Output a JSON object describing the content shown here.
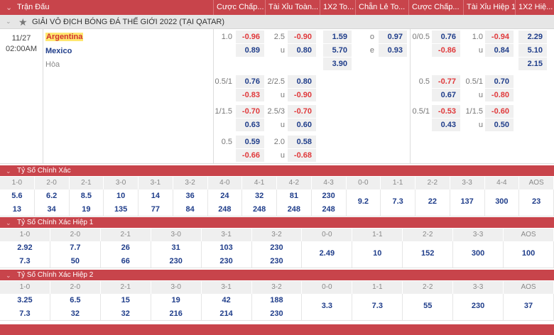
{
  "header": {
    "columns": [
      "Trận Đấu",
      "Cược Chấp...",
      "Tài Xỉu Toàn...",
      "1X2 To...",
      "Chẵn Lẻ To...",
      "Cược Chấp...",
      "Tài Xỉu Hiệp 1",
      "1X2 Hiệ..."
    ]
  },
  "league": {
    "name": "GIẢI VÔ ĐỊCH BÓNG ĐÁ THẾ GIỚI 2022 (TẠI QATAR)",
    "icon": "star-icon"
  },
  "match": {
    "date": "11/27",
    "time": "02:00AM",
    "home": "Argentina",
    "away": "Mexico",
    "draw": "Hòa",
    "x12": [
      "1.59",
      "5.70",
      "3.90"
    ],
    "oddeven": [
      {
        "label": "o",
        "value": "0.97"
      },
      {
        "label": "e",
        "value": "0.93"
      }
    ],
    "h1_x12": [
      "2.29",
      "5.10",
      "2.15"
    ],
    "groups": [
      {
        "hdp": {
          "line": "1.0",
          "a": "-0.96",
          "b": "0.89"
        },
        "ou": {
          "line": "2.5",
          "u": "u",
          "a": "-0.90",
          "b": "0.80"
        },
        "h1_hdp": {
          "line": "0/0.5",
          "a": "0.76",
          "b": "-0.86"
        },
        "h1_ou": {
          "line": "1.0",
          "u": "u",
          "a": "-0.94",
          "b": "0.84"
        }
      },
      {
        "hdp": {
          "line": "0.5/1",
          "a": "0.76",
          "b": "-0.83"
        },
        "ou": {
          "line": "2/2.5",
          "u": "u",
          "a": "0.80",
          "b": "-0.90"
        },
        "h1_hdp": {
          "line": "0.5",
          "a": "-0.77",
          "b": "0.67"
        },
        "h1_ou": {
          "line": "0.5/1",
          "u": "u",
          "a": "0.70",
          "b": "-0.80"
        }
      },
      {
        "hdp": {
          "line": "1/1.5",
          "a": "-0.70",
          "b": "0.63"
        },
        "ou": {
          "line": "2.5/3",
          "u": "u",
          "a": "-0.70",
          "b": "0.60"
        },
        "h1_hdp": {
          "line": "0.5/1",
          "a": "-0.53",
          "b": "0.43"
        },
        "h1_ou": {
          "line": "1/1.5",
          "u": "u",
          "a": "-0.60",
          "b": "0.50"
        }
      },
      {
        "hdp": {
          "line": "0.5",
          "a": "0.59",
          "b": "-0.66"
        },
        "ou": {
          "line": "2.0",
          "u": "u",
          "a": "0.58",
          "b": "-0.68"
        }
      }
    ]
  },
  "sections": [
    {
      "title": "Tỷ Số Chính Xác",
      "cols": [
        {
          "label": "1-0",
          "home": "5.6",
          "away": "13"
        },
        {
          "label": "2-0",
          "home": "6.2",
          "away": "34"
        },
        {
          "label": "2-1",
          "home": "8.5",
          "away": "19"
        },
        {
          "label": "3-0",
          "home": "10",
          "away": "135"
        },
        {
          "label": "3-1",
          "home": "14",
          "away": "77"
        },
        {
          "label": "3-2",
          "home": "36",
          "away": "84"
        },
        {
          "label": "4-0",
          "home": "24",
          "away": "248"
        },
        {
          "label": "4-1",
          "home": "32",
          "away": "248"
        },
        {
          "label": "4-2",
          "home": "81",
          "away": "248"
        },
        {
          "label": "4-3",
          "home": "230",
          "away": "248"
        },
        {
          "label": "0-0",
          "value": "9.2"
        },
        {
          "label": "1-1",
          "value": "7.3"
        },
        {
          "label": "2-2",
          "value": "22"
        },
        {
          "label": "3-3",
          "value": "137"
        },
        {
          "label": "4-4",
          "value": "300"
        },
        {
          "label": "AOS",
          "value": "23"
        }
      ]
    },
    {
      "title": "Tỷ Số Chính Xác Hiệp 1",
      "cols": [
        {
          "label": "1-0",
          "home": "2.92",
          "away": "7.3"
        },
        {
          "label": "2-0",
          "home": "7.7",
          "away": "50"
        },
        {
          "label": "2-1",
          "home": "26",
          "away": "66"
        },
        {
          "label": "3-0",
          "home": "31",
          "away": "230"
        },
        {
          "label": "3-1",
          "home": "103",
          "away": "230"
        },
        {
          "label": "3-2",
          "home": "230",
          "away": "230"
        },
        {
          "label": "0-0",
          "value": "2.49"
        },
        {
          "label": "1-1",
          "value": "10"
        },
        {
          "label": "2-2",
          "value": "152"
        },
        {
          "label": "3-3",
          "value": "300"
        },
        {
          "label": "AOS",
          "value": "100"
        }
      ]
    },
    {
      "title": "Tỷ Số Chính Xác Hiệp 2",
      "cols": [
        {
          "label": "1-0",
          "home": "3.25",
          "away": "7.3"
        },
        {
          "label": "2-0",
          "home": "6.5",
          "away": "32"
        },
        {
          "label": "2-1",
          "home": "15",
          "away": "32"
        },
        {
          "label": "3-0",
          "home": "19",
          "away": "216"
        },
        {
          "label": "3-1",
          "home": "42",
          "away": "214"
        },
        {
          "label": "3-2",
          "home": "188",
          "away": "230"
        },
        {
          "label": "0-0",
          "value": "3.3"
        },
        {
          "label": "1-1",
          "value": "7.3"
        },
        {
          "label": "2-2",
          "value": "55"
        },
        {
          "label": "3-3",
          "value": "230"
        },
        {
          "label": "AOS",
          "value": "37"
        }
      ]
    }
  ],
  "colors": {
    "header": "#c8444b",
    "negative": "#e0393b",
    "positive": "#1f3d8a"
  }
}
